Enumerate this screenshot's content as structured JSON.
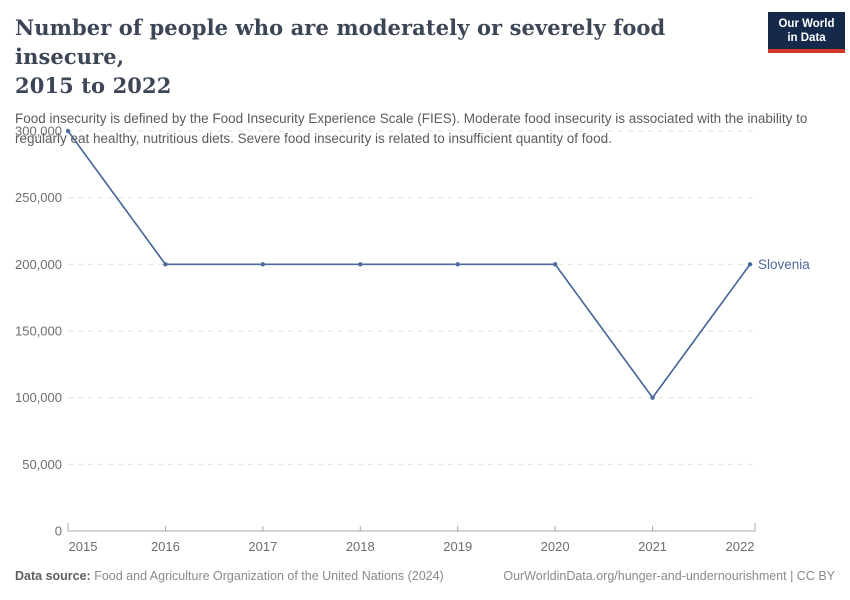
{
  "header": {
    "title_line1": "Number of people who are moderately or severely food insecure,",
    "title_line2": "2015 to 2022",
    "subtitle": "Food insecurity is defined by the Food Insecurity Experience Scale (FIES). Moderate food insecurity is associated with the inability to regularly eat healthy, nutritious diets. Severe food insecurity is related to insufficient quantity of food.",
    "logo": {
      "line1": "Our World",
      "line2": "in Data"
    }
  },
  "chart_data": {
    "type": "line",
    "title": "Number of people who are moderately or severely food insecure, 2015 to 2022",
    "x": [
      2015,
      2016,
      2017,
      2018,
      2019,
      2020,
      2021,
      2022
    ],
    "series": [
      {
        "name": "Slovenia",
        "values": [
          300000,
          200000,
          200000,
          200000,
          200000,
          200000,
          100000,
          200000
        ],
        "color": "#4c6a9c"
      }
    ],
    "xlabel": "",
    "ylabel": "",
    "ylim": [
      0,
      300000
    ],
    "yticks": [
      0,
      50000,
      100000,
      150000,
      200000,
      250000,
      300000
    ],
    "grid": "horizontal-dashed",
    "legend_position": "right-of-line-end"
  },
  "footer": {
    "source_label": "Data source:",
    "source_text": " Food and Agriculture Organization of the United Nations (2024)",
    "credit": "OurWorldinData.org/hunger-and-undernourishment | CC BY"
  },
  "colors": {
    "title": "#3d4656",
    "subtitle": "#5b5b5b",
    "grid": "#e2e2e2",
    "axis": "#a8a8a8",
    "tick_label": "#6e6e6e",
    "series_line": "#4c6a9c",
    "logo_bg": "#15294a",
    "logo_red": "#d2372c"
  }
}
